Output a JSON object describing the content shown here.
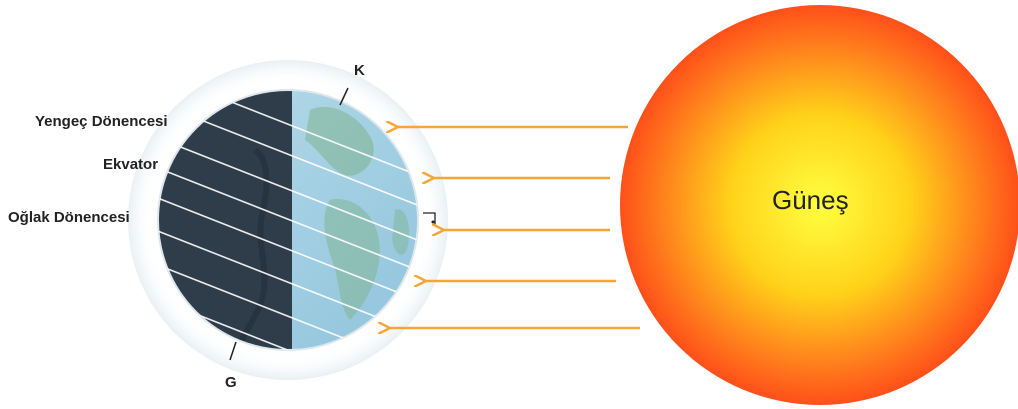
{
  "labels": {
    "north": "K",
    "south": "G",
    "cancer": "Yengeç Dönencesi",
    "equator": "Ekvator",
    "capricorn": "Oğlak Dönencesi",
    "sun": "Güneş"
  },
  "colors": {
    "ray": "#f5a636",
    "sun_center": "#ffff30",
    "sun_edge": "#ff5a1a",
    "earth_day": "#a8d4e8",
    "earth_night": "#2f3d4a",
    "latitude_line": "#ffffff"
  }
}
